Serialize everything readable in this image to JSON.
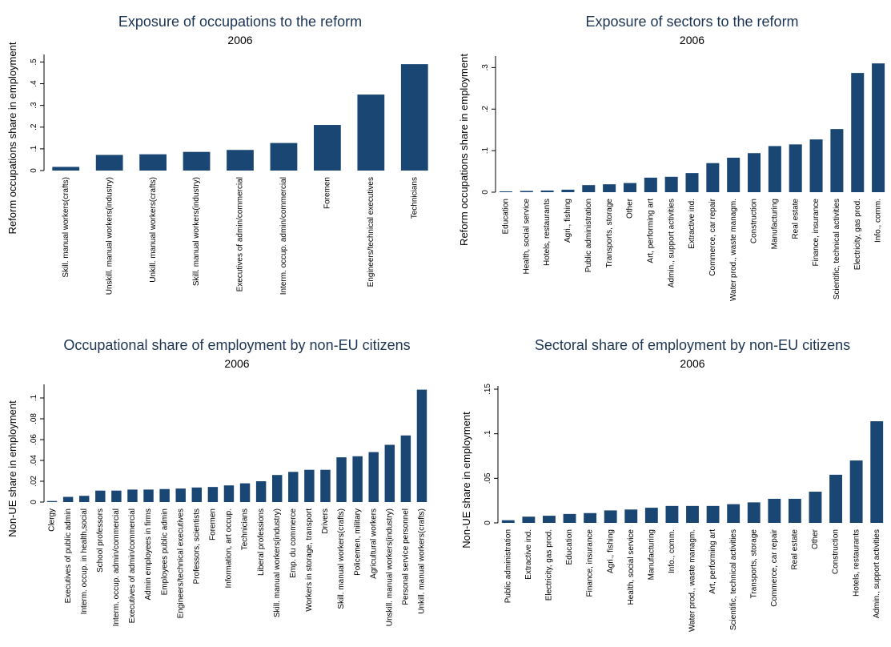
{
  "chart_data": [
    {
      "type": "bar",
      "title": "Exposure of occupations to the reform",
      "subtitle": "2006",
      "y_label": "Reform occupations share in employment",
      "color": "#1a4673",
      "categories": [
        "Skill. manual workers(crafts)",
        "Unskill. manual workers(industry)",
        "Unkill. manual workers(crafts)",
        "Skill. manual workers(industry)",
        "Executives of admin/commercial",
        "Interm. occup. admin/commercial",
        "Foremen",
        "Engineers/technical executives",
        "Technicians"
      ],
      "values": [
        0.017,
        0.072,
        0.075,
        0.086,
        0.095,
        0.127,
        0.21,
        0.35,
        0.49
      ],
      "ylim": [
        0,
        0.52
      ],
      "yticks": [
        0,
        {
          "value": 0.1,
          "label": ".1"
        },
        {
          "value": 0.2,
          "label": ".2"
        },
        {
          "value": 0.3,
          "label": ".3"
        },
        {
          "value": 0.4,
          "label": ".4"
        },
        {
          "value": 0.5,
          "label": ".5"
        }
      ]
    },
    {
      "type": "bar",
      "title": "Exposure of sectors to the reform",
      "subtitle": "2006",
      "y_label": "Reform occupations share in employment",
      "color": "#1a4673",
      "categories": [
        "Education",
        "Health, social service",
        "Hotels, restaurants",
        "Agri., fishing",
        "Public administration",
        "Transports, storage",
        "Other",
        "Art, performing art",
        "Admin., support activities",
        "Extractive ind.",
        "Commerce, car repair",
        "Water prod., waste managm.",
        "Construction",
        "Manufacturing",
        "Real estate",
        "Finance, insurance",
        "Scientific, technical activities",
        "Electricity, gas prod.",
        "Info., comm."
      ],
      "values": [
        0.002,
        0.003,
        0.004,
        0.006,
        0.017,
        0.019,
        0.022,
        0.035,
        0.037,
        0.046,
        0.07,
        0.083,
        0.094,
        0.111,
        0.115,
        0.127,
        0.152,
        0.287,
        0.31
      ],
      "ylim": [
        0,
        0.32
      ],
      "yticks": [
        0,
        {
          "value": 0.1,
          "label": ".1"
        },
        {
          "value": 0.2,
          "label": ".2"
        },
        {
          "value": 0.3,
          "label": ".3"
        }
      ]
    },
    {
      "type": "bar",
      "title": "Occupational share of employment by non-EU citizens",
      "subtitle": "2006",
      "y_label": "Non-UE share in employment",
      "color": "#1a4673",
      "categories": [
        "Clergy",
        "Executives of public admin",
        "Interm. occup. in health,social",
        "School professors",
        "Interm. occup. admin/commercial",
        "Executives of admin/commercial",
        "Admin employees in firms",
        "Employees public admin",
        "Engineers/technical executives",
        "Professors, scientists",
        "Foremen",
        "Information, art occup.",
        "Technicians",
        "Liberal professions",
        "Skill. manual workers(industry)",
        "Emp. du commerce",
        "Workers in storage, transport",
        "Drivers",
        "Skill. manual workers(crafts)",
        "Policemen, military",
        "Agricultural workers",
        "Unskill. manual workers(industry)",
        "Personal service personnel",
        "Unkill. manual workers(crafts)"
      ],
      "values": [
        0.001,
        0.005,
        0.006,
        0.011,
        0.011,
        0.012,
        0.012,
        0.0125,
        0.013,
        0.014,
        0.0145,
        0.016,
        0.018,
        0.02,
        0.026,
        0.029,
        0.031,
        0.031,
        0.043,
        0.044,
        0.048,
        0.055,
        0.064,
        0.108
      ],
      "ylim": [
        0,
        0.11
      ],
      "yticks": [
        0,
        {
          "value": 0.02,
          "label": ".02"
        },
        {
          "value": 0.04,
          "label": ".04"
        },
        {
          "value": 0.06,
          "label": ".06"
        },
        {
          "value": 0.08,
          "label": ".08"
        },
        {
          "value": 0.1,
          "label": ".1"
        }
      ]
    },
    {
      "type": "bar",
      "title": "Sectoral share of employment by non-EU citizens",
      "subtitle": "2006",
      "y_label": "Non-UE share in employment",
      "color": "#1a4673",
      "categories": [
        "Public administration",
        "Extractive ind.",
        "Electricity, gas prod.",
        "Education",
        "Finance, insurance",
        "Agri., fishing",
        "Health, social service",
        "Manufacturing",
        "Info., comm.",
        "Water prod., waste managm.",
        "Art, performing art",
        "Scientific, technical activities",
        "Transports, storage",
        "Commerce, car repair",
        "Real estate",
        "Other",
        "Construction",
        "Hotels, restaurants",
        "Admin., support activities"
      ],
      "values": [
        0.003,
        0.007,
        0.008,
        0.01,
        0.011,
        0.014,
        0.015,
        0.017,
        0.019,
        0.019,
        0.019,
        0.021,
        0.023,
        0.027,
        0.027,
        0.035,
        0.054,
        0.07,
        0.114
      ],
      "ylim": [
        0,
        0.15
      ],
      "yticks": [
        0,
        {
          "value": 0.05,
          "label": ".05"
        },
        {
          "value": 0.1,
          "label": ".1"
        },
        {
          "value": 0.15,
          "label": ".15"
        }
      ]
    }
  ]
}
